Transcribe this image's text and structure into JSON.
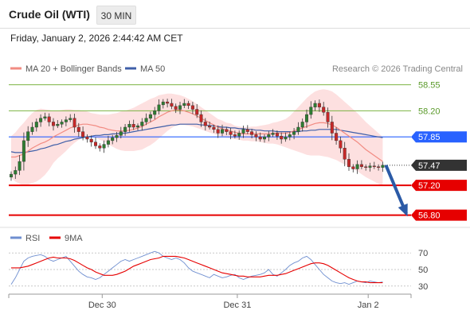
{
  "header": {
    "title": "Crude Oil (WTI)",
    "timeframe": "30 MIN",
    "datetime": "Friday, January 2, 2026 2:44:42 AM CET"
  },
  "legend": {
    "ma20": "MA 20 + Bollinger Bands",
    "ma50": "MA 50",
    "credit": "Research © 2026 Trading Central",
    "rsi": "RSI",
    "rsi_ma": "9MA"
  },
  "chart_data": [
    {
      "type": "candlestick",
      "title": "Crude Oil (WTI)",
      "timeframe": "30 MIN",
      "ylim": [
        56.7,
        58.62
      ],
      "x_ticks": [
        "Dec 30",
        "Dec 31",
        "Jan 2"
      ],
      "colors": {
        "up": "#2e7d32",
        "down": "#c62828",
        "ma20": "#f28b82",
        "ma50": "#3f5fa8",
        "band": "#fde0e0"
      },
      "levels": [
        {
          "value": 58.55,
          "label": "58.55",
          "kind": "target",
          "color": "#7cb342"
        },
        {
          "value": 58.2,
          "label": "58.20",
          "kind": "target",
          "color": "#7cb342"
        },
        {
          "value": 57.85,
          "label": "57.85",
          "kind": "pivot",
          "color": "#2962ff"
        },
        {
          "value": 57.47,
          "label": "57.47",
          "kind": "last-price",
          "color": "#333333"
        },
        {
          "value": 57.2,
          "label": "57.20",
          "kind": "support",
          "color": "#e60000"
        },
        {
          "value": 56.8,
          "label": "56.80",
          "kind": "support",
          "color": "#e60000"
        }
      ],
      "close": [
        57.35,
        57.4,
        57.52,
        57.8,
        57.92,
        57.98,
        58.05,
        58.1,
        58.12,
        58.05,
        58.0,
        58.02,
        58.05,
        58.08,
        58.1,
        57.98,
        57.92,
        57.85,
        57.82,
        57.78,
        57.73,
        57.7,
        57.75,
        57.8,
        57.84,
        57.87,
        57.92,
        57.98,
        58.02,
        57.98,
        58.0,
        58.05,
        58.1,
        58.15,
        58.2,
        58.28,
        58.32,
        58.3,
        58.26,
        58.22,
        58.27,
        58.3,
        58.27,
        58.22,
        58.15,
        58.05,
        58.0,
        57.98,
        57.95,
        57.9,
        57.95,
        57.92,
        57.88,
        57.86,
        57.9,
        57.95,
        57.92,
        57.88,
        57.85,
        57.82,
        57.85,
        57.88,
        57.9,
        57.86,
        57.82,
        57.85,
        57.88,
        57.92,
        57.98,
        58.05,
        58.15,
        58.25,
        58.3,
        58.25,
        58.18,
        58.05,
        57.9,
        57.8,
        57.7,
        57.55,
        57.45,
        57.42,
        57.48,
        57.45,
        57.44,
        57.46,
        57.45,
        57.44,
        57.47
      ],
      "ma20": [
        57.58,
        57.58,
        57.6,
        57.62,
        57.66,
        57.7,
        57.73,
        57.76,
        57.78,
        57.81,
        57.85,
        57.88,
        57.91,
        57.94,
        57.97,
        57.99,
        58.01,
        58.02,
        58.02,
        58.01,
        58.0,
        57.98,
        57.97,
        57.95,
        57.94,
        57.93,
        57.93,
        57.93,
        57.94,
        57.95,
        57.97,
        57.99,
        58.02,
        58.05,
        58.08,
        58.12,
        58.15,
        58.18,
        58.2,
        58.21,
        58.21,
        58.2,
        58.18,
        58.16,
        58.13,
        58.1,
        58.07,
        58.04,
        58.01,
        57.98,
        57.96,
        57.94,
        57.93,
        57.91,
        57.9,
        57.89,
        57.89,
        57.89,
        57.89,
        57.89,
        57.89,
        57.89,
        57.9,
        57.9,
        57.9,
        57.9,
        57.91,
        57.93,
        57.95,
        57.97,
        57.99,
        58.01,
        58.03,
        58.04,
        58.04,
        58.03,
        58.01,
        57.98,
        57.94,
        57.9,
        57.86,
        57.82,
        57.78,
        57.73,
        57.68,
        57.64,
        57.6,
        57.56,
        57.52
      ],
      "ma50": [
        57.65,
        57.64,
        57.64,
        57.64,
        57.65,
        57.66,
        57.67,
        57.69,
        57.7,
        57.72,
        57.74,
        57.75,
        57.77,
        57.79,
        57.8,
        57.82,
        57.83,
        57.84,
        57.85,
        57.86,
        57.87,
        57.87,
        57.88,
        57.88,
        57.89,
        57.89,
        57.9,
        57.9,
        57.91,
        57.92,
        57.93,
        57.94,
        57.95,
        57.96,
        57.97,
        57.98,
        57.99,
        58.0,
        58.01,
        58.01,
        58.02,
        58.02,
        58.02,
        58.02,
        58.02,
        58.01,
        58.01,
        58.0,
        58.0,
        57.99,
        57.98,
        57.98,
        57.97,
        57.97,
        57.96,
        57.96,
        57.95,
        57.95,
        57.94,
        57.94,
        57.93,
        57.93,
        57.93,
        57.92,
        57.92,
        57.92,
        57.92,
        57.92,
        57.92,
        57.93,
        57.93,
        57.94,
        57.94,
        57.95,
        57.95,
        57.95,
        57.95,
        57.95,
        57.94,
        57.93,
        57.92,
        57.91,
        57.9,
        57.89,
        57.88,
        57.87,
        57.86,
        57.85,
        57.84
      ],
      "band_width": [
        0.28,
        0.33,
        0.38,
        0.42,
        0.45,
        0.47,
        0.48,
        0.47,
        0.44,
        0.4,
        0.35,
        0.32,
        0.3,
        0.28,
        0.25,
        0.22,
        0.2,
        0.18,
        0.17,
        0.16,
        0.16,
        0.17,
        0.18,
        0.2,
        0.22,
        0.24,
        0.26,
        0.27,
        0.28,
        0.29,
        0.3,
        0.31,
        0.31,
        0.31,
        0.3,
        0.29,
        0.27,
        0.25,
        0.23,
        0.21,
        0.2,
        0.19,
        0.18,
        0.17,
        0.16,
        0.15,
        0.14,
        0.13,
        0.12,
        0.11,
        0.11,
        0.1,
        0.1,
        0.09,
        0.09,
        0.09,
        0.09,
        0.1,
        0.1,
        0.11,
        0.12,
        0.13,
        0.14,
        0.15,
        0.17,
        0.19,
        0.22,
        0.26,
        0.3,
        0.34,
        0.38,
        0.41,
        0.43,
        0.44,
        0.45,
        0.45,
        0.45,
        0.44,
        0.43,
        0.42,
        0.41,
        0.4,
        0.39,
        0.38,
        0.37,
        0.36,
        0.35,
        0.34,
        0.33
      ],
      "forecast": {
        "from": 57.47,
        "to": 56.8
      }
    },
    {
      "type": "line",
      "name": "RSI",
      "ylim": [
        24,
        76
      ],
      "y_ticks": [
        70,
        50,
        30
      ],
      "series": [
        {
          "name": "RSI",
          "color": "#6f8fd0",
          "values": [
            32,
            40,
            50,
            60,
            64,
            66,
            67,
            68,
            66,
            62,
            60,
            62,
            64,
            66,
            60,
            54,
            48,
            44,
            41,
            40,
            38,
            40,
            44,
            48,
            52,
            56,
            60,
            62,
            60,
            62,
            64,
            66,
            68,
            70,
            72,
            70,
            66,
            64,
            62,
            64,
            62,
            58,
            52,
            48,
            46,
            44,
            42,
            40,
            44,
            42,
            40,
            41,
            43,
            44,
            40,
            38,
            40,
            42,
            43,
            44,
            46,
            50,
            44,
            42,
            46,
            50,
            55,
            58,
            60,
            64,
            66,
            62,
            56,
            50,
            44,
            40,
            36,
            34,
            33,
            34,
            32,
            34,
            36,
            35,
            34,
            36,
            35,
            34,
            35
          ]
        },
        {
          "name": "9MA",
          "color": "#e60000",
          "values": [
            52,
            52,
            52,
            53,
            54,
            56,
            58,
            60,
            62,
            64,
            65,
            64,
            64,
            64,
            63,
            61,
            58,
            55,
            52,
            50,
            47,
            45,
            43,
            43,
            43,
            44,
            46,
            48,
            51,
            54,
            56,
            58,
            60,
            62,
            63,
            64,
            66,
            66,
            66,
            66,
            65,
            64,
            62,
            60,
            58,
            56,
            54,
            52,
            50,
            48,
            46,
            45,
            44,
            43,
            42,
            42,
            41,
            41,
            41,
            41,
            42,
            43,
            43,
            43,
            44,
            45,
            47,
            49,
            51,
            53,
            55,
            57,
            58,
            58,
            57,
            55,
            52,
            49,
            46,
            43,
            40,
            38,
            36,
            35,
            35,
            34,
            34,
            34,
            34
          ]
        }
      ]
    }
  ]
}
